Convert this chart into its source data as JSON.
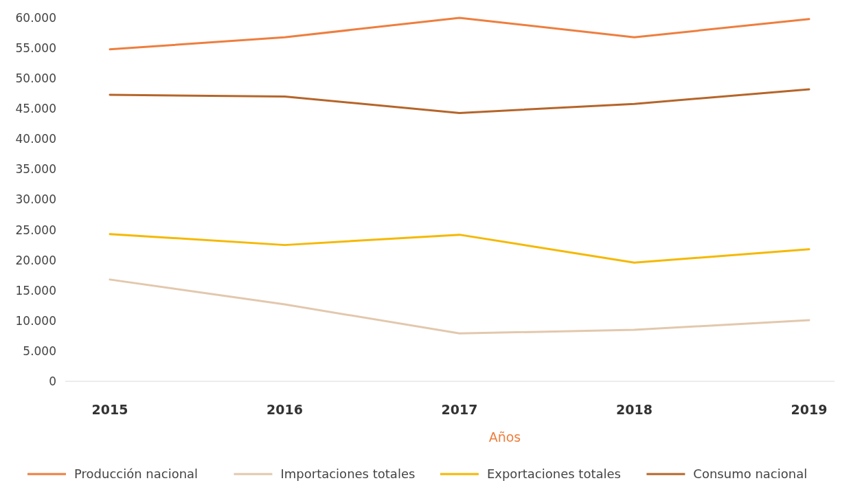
{
  "chart_data": {
    "type": "line",
    "xlabel": "Años",
    "categories": [
      "2015",
      "2016",
      "2017",
      "2018",
      "2019"
    ],
    "series": [
      {
        "name": "Producción nacional",
        "color": "#ee7e3e",
        "values": [
          54800,
          56800,
          60000,
          56800,
          59800
        ]
      },
      {
        "name": "Importaciones totales",
        "color": "#e2c8ad",
        "values": [
          16800,
          12700,
          7900,
          8500,
          10100
        ]
      },
      {
        "name": "Exportaciones totales",
        "color": "#f5b800",
        "values": [
          24300,
          22500,
          24200,
          19600,
          21800
        ]
      },
      {
        "name": "Consumo nacional",
        "color": "#b5652a",
        "values": [
          47300,
          47000,
          44300,
          45800,
          48200
        ]
      }
    ],
    "ylim": [
      0,
      60000
    ],
    "yticks": [
      {
        "value": 0,
        "label": "0"
      },
      {
        "value": 5000,
        "label": "5.000"
      },
      {
        "value": 10000,
        "label": "10.000"
      },
      {
        "value": 15000,
        "label": "15.000"
      },
      {
        "value": 20000,
        "label": "20.000"
      },
      {
        "value": 25000,
        "label": "25.000"
      },
      {
        "value": 30000,
        "label": "30.000"
      },
      {
        "value": 35000,
        "label": "35.000"
      },
      {
        "value": 40000,
        "label": "40.000"
      },
      {
        "value": 45000,
        "label": "45.000"
      },
      {
        "value": 50000,
        "label": "50.000"
      },
      {
        "value": 55000,
        "label": "55.000"
      },
      {
        "value": 60000,
        "label": "60.000"
      }
    ],
    "grid": false,
    "legend": "bottom",
    "marker": "none",
    "line_style": "solid"
  }
}
